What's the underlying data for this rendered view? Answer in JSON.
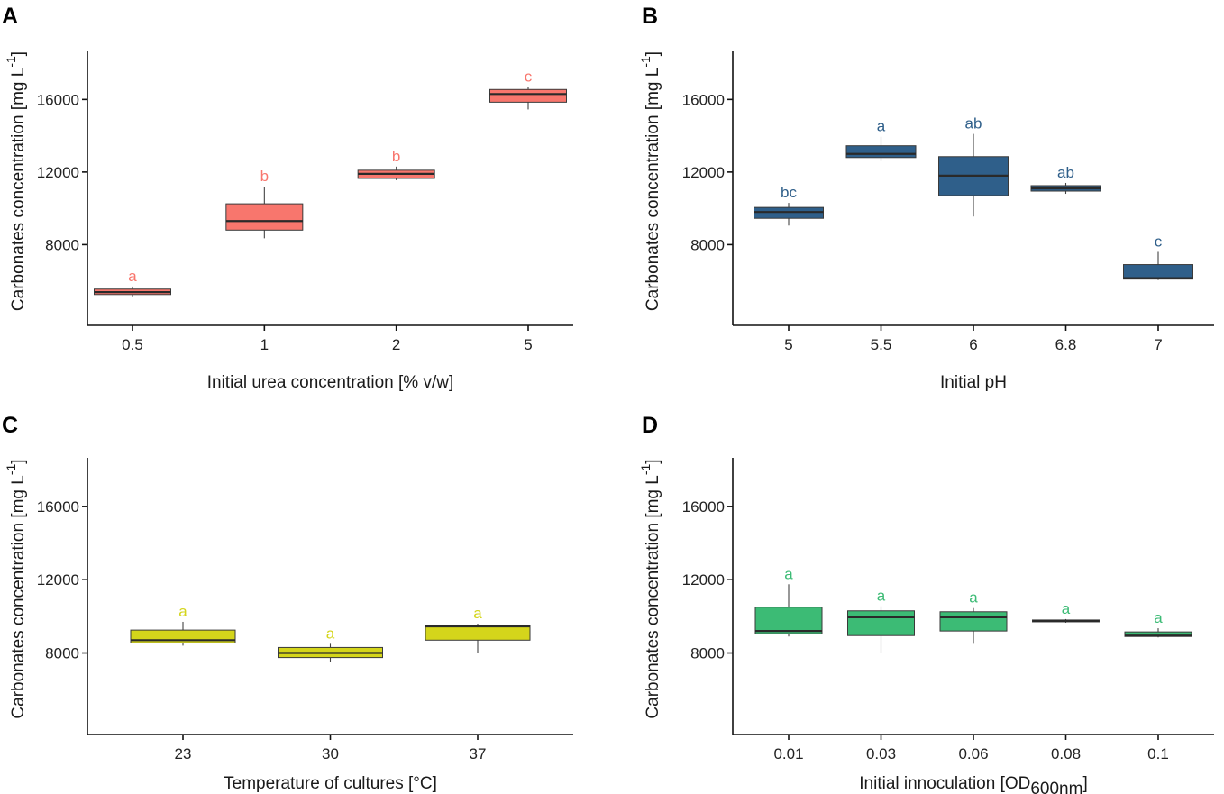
{
  "chart_data": [
    {
      "type": "boxplot",
      "panel": "A",
      "color": "#F8766D",
      "xlabel": "Initial urea concentration [% v/w]",
      "ylabel_main": "Carbonates concentration [mg L",
      "ylabel_sup": "-1",
      "ylabel_end": "]",
      "xlabel_sub": "",
      "xlabel_end": "",
      "ylim": [
        3550,
        18650
      ],
      "yticks": [
        8000,
        12000,
        16000
      ],
      "ytick_labels": [
        "8000",
        "12000",
        "16000"
      ],
      "categories": [
        "0.5",
        "1",
        "2",
        "5"
      ],
      "boxes": [
        {
          "min": 5150,
          "q1": 5250,
          "median": 5380,
          "q3": 5550,
          "max": 5690,
          "letter": "a"
        },
        {
          "min": 8350,
          "q1": 8800,
          "median": 9300,
          "q3": 10250,
          "max": 11200,
          "letter": "b"
        },
        {
          "min": 11550,
          "q1": 11650,
          "median": 11900,
          "q3": 12100,
          "max": 12300,
          "letter": "b"
        },
        {
          "min": 15450,
          "q1": 15850,
          "median": 16300,
          "q3": 16550,
          "max": 16700,
          "letter": "c"
        }
      ]
    },
    {
      "type": "boxplot",
      "panel": "B",
      "color": "#2F5F8A",
      "xlabel": "Initial pH",
      "ylabel_main": "Carbonates concentration [mg L",
      "ylabel_sup": "-1",
      "ylabel_end": "]",
      "xlabel_sub": "",
      "xlabel_end": "",
      "ylim": [
        3550,
        18650
      ],
      "yticks": [
        8000,
        12000,
        16000
      ],
      "ytick_labels": [
        "8000",
        "12000",
        "16000"
      ],
      "categories": [
        "5",
        "5.5",
        "6",
        "6.8",
        "7"
      ],
      "boxes": [
        {
          "min": 9050,
          "q1": 9450,
          "median": 9800,
          "q3": 10050,
          "max": 10300,
          "letter": "bc"
        },
        {
          "min": 12600,
          "q1": 12800,
          "median": 13000,
          "q3": 13450,
          "max": 13950,
          "letter": "a"
        },
        {
          "min": 9550,
          "q1": 10700,
          "median": 11800,
          "q3": 12850,
          "max": 14100,
          "letter": "ab"
        },
        {
          "min": 10800,
          "q1": 10950,
          "median": 11100,
          "q3": 11250,
          "max": 11400,
          "letter": "ab"
        },
        {
          "min": 6050,
          "q1": 6100,
          "median": 6150,
          "q3": 6900,
          "max": 7600,
          "letter": "c"
        }
      ]
    },
    {
      "type": "boxplot",
      "panel": "C",
      "color": "#D4D51B",
      "xlabel": "Temperature of cultures [°C]",
      "ylabel_main": "Carbonates concentration [mg L",
      "ylabel_sup": "-1",
      "ylabel_end": "]",
      "xlabel_sub": "",
      "xlabel_end": "",
      "ylim": [
        3550,
        18650
      ],
      "yticks": [
        8000,
        12000,
        16000
      ],
      "ytick_labels": [
        "8000",
        "12000",
        "16000"
      ],
      "categories": [
        "23",
        "30",
        "37"
      ],
      "boxes": [
        {
          "min": 8400,
          "q1": 8550,
          "median": 8700,
          "q3": 9250,
          "max": 9700,
          "letter": "a"
        },
        {
          "min": 7500,
          "q1": 7750,
          "median": 8000,
          "q3": 8300,
          "max": 8500,
          "letter": "a"
        },
        {
          "min": 8000,
          "q1": 8700,
          "median": 9450,
          "q3": 9500,
          "max": 9600,
          "letter": "a"
        }
      ]
    },
    {
      "type": "boxplot",
      "panel": "D",
      "color": "#3CBB75",
      "xlabel": "Initial innoculation [OD",
      "xlabel_sub": "600nm",
      "xlabel_end": "]",
      "ylabel_main": "Carbonates concentration [mg L",
      "ylabel_sup": "-1",
      "ylabel_end": "]",
      "ylim": [
        3550,
        18650
      ],
      "yticks": [
        8000,
        12000,
        16000
      ],
      "ytick_labels": [
        "8000",
        "12000",
        "16000"
      ],
      "categories": [
        "0.01",
        "0.03",
        "0.06",
        "0.08",
        "0.1"
      ],
      "boxes": [
        {
          "min": 8900,
          "q1": 9050,
          "median": 9200,
          "q3": 10500,
          "max": 11750,
          "letter": "a"
        },
        {
          "min": 8000,
          "q1": 8950,
          "median": 9950,
          "q3": 10300,
          "max": 10550,
          "letter": "a"
        },
        {
          "min": 8500,
          "q1": 9200,
          "median": 9950,
          "q3": 10250,
          "max": 10450,
          "letter": "a"
        },
        {
          "min": 9650,
          "q1": 9700,
          "median": 9750,
          "q3": 9800,
          "max": 9850,
          "letter": "a"
        },
        {
          "min": 8850,
          "q1": 8900,
          "median": 8950,
          "q3": 9150,
          "max": 9350,
          "letter": "a"
        }
      ]
    }
  ]
}
